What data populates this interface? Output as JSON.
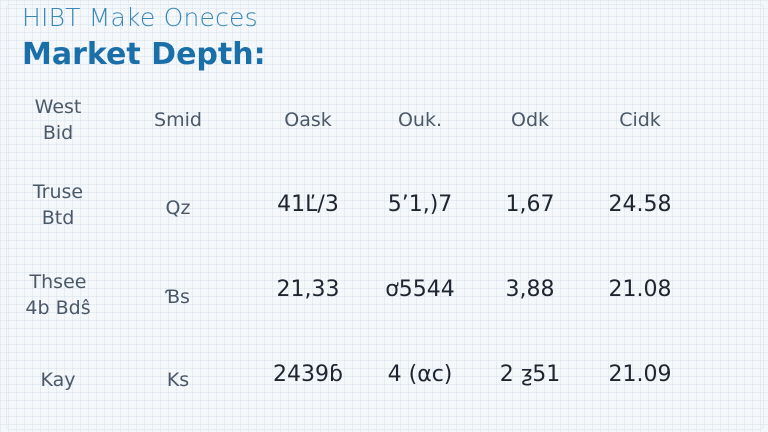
{
  "header": {
    "subtitle": "HIBT Make Oneces",
    "title": "Market Depth:"
  },
  "table": {
    "columns": [
      "West\nBid",
      "Smid",
      "Oask",
      "Ouk.",
      "Odk",
      "Cidk"
    ],
    "rows": [
      [
        "Truse\nBtd",
        "Qz",
        "41Ľ/3",
        "5’1,)7",
        "1,67",
        "24.58"
      ],
      [
        "Thsee\n4b Bdŝ",
        "Ɓs",
        "21,33",
        "ơ5544",
        "3,88",
        "21.08"
      ],
      [
        "Kay",
        "Ks",
        "2439ɓ",
        "4 (αc)",
        "2 ƺ51",
        "21.09"
      ]
    ]
  }
}
